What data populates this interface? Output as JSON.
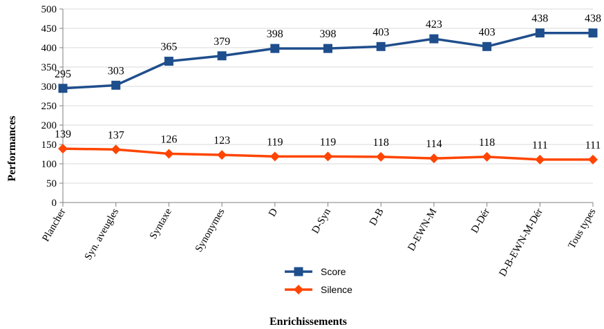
{
  "chart_data": {
    "type": "line",
    "categories": [
      "Plancher",
      "Syn. aveugles",
      "Syntaxe",
      "Synonymes",
      "D",
      "D-Syn",
      "D-B",
      "D-EWN-M",
      "D-Dér",
      "D-B-EWN-M-Dér",
      "Tous types"
    ],
    "series": [
      {
        "name": "Score",
        "values": [
          295,
          303,
          365,
          379,
          398,
          398,
          403,
          423,
          403,
          438,
          438
        ],
        "color": "#1f4e8c",
        "marker": "square"
      },
      {
        "name": "Silence",
        "values": [
          139,
          137,
          126,
          123,
          119,
          119,
          118,
          114,
          118,
          111,
          111
        ],
        "color": "#ff4500",
        "marker": "diamond"
      }
    ],
    "xlabel": "Enrichissements",
    "ylabel": "Performances",
    "ylim": [
      0,
      500
    ],
    "yticks": [
      0,
      50,
      100,
      150,
      200,
      250,
      300,
      350,
      400,
      450,
      500
    ],
    "grid": true,
    "legend": "bottom-center"
  }
}
